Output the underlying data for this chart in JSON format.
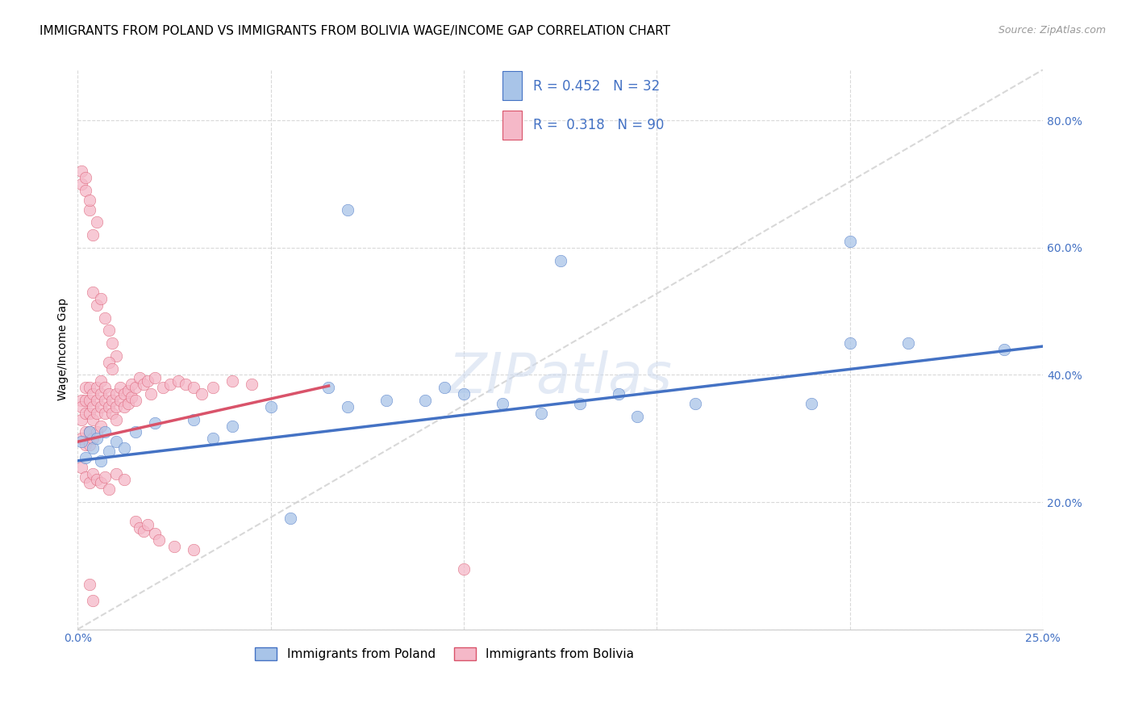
{
  "title": "IMMIGRANTS FROM POLAND VS IMMIGRANTS FROM BOLIVIA WAGE/INCOME GAP CORRELATION CHART",
  "source": "Source: ZipAtlas.com",
  "ylabel": "Wage/Income Gap",
  "xmin": 0.0,
  "xmax": 0.25,
  "ymin": 0.0,
  "ymax": 0.88,
  "ytick_vals": [
    0.0,
    0.2,
    0.4,
    0.6,
    0.8
  ],
  "ytick_labels": [
    "",
    "20.0%",
    "40.0%",
    "60.0%",
    "80.0%"
  ],
  "xtick_vals": [
    0.0,
    0.05,
    0.1,
    0.15,
    0.2,
    0.25
  ],
  "xtick_labels": [
    "0.0%",
    "",
    "",
    "",
    "",
    "25.0%"
  ],
  "legend_r1": "0.452",
  "legend_n1": "32",
  "legend_r2": "0.318",
  "legend_n2": "90",
  "color_poland_fill": "#a8c4e8",
  "color_bolivia_fill": "#f5b8c8",
  "color_poland_line": "#4472c4",
  "color_bolivia_line": "#d9536a",
  "color_diagonal": "#c8c8c8",
  "label_poland": "Immigrants from Poland",
  "label_bolivia": "Immigrants from Bolivia",
  "poland_intercept": 0.265,
  "poland_slope": 0.72,
  "bolivia_intercept": 0.295,
  "bolivia_slope": 1.35,
  "bolivia_line_xmax": 0.065,
  "watermark": "ZIPatlas",
  "title_fontsize": 11,
  "axis_label_fontsize": 10,
  "tick_fontsize": 10
}
